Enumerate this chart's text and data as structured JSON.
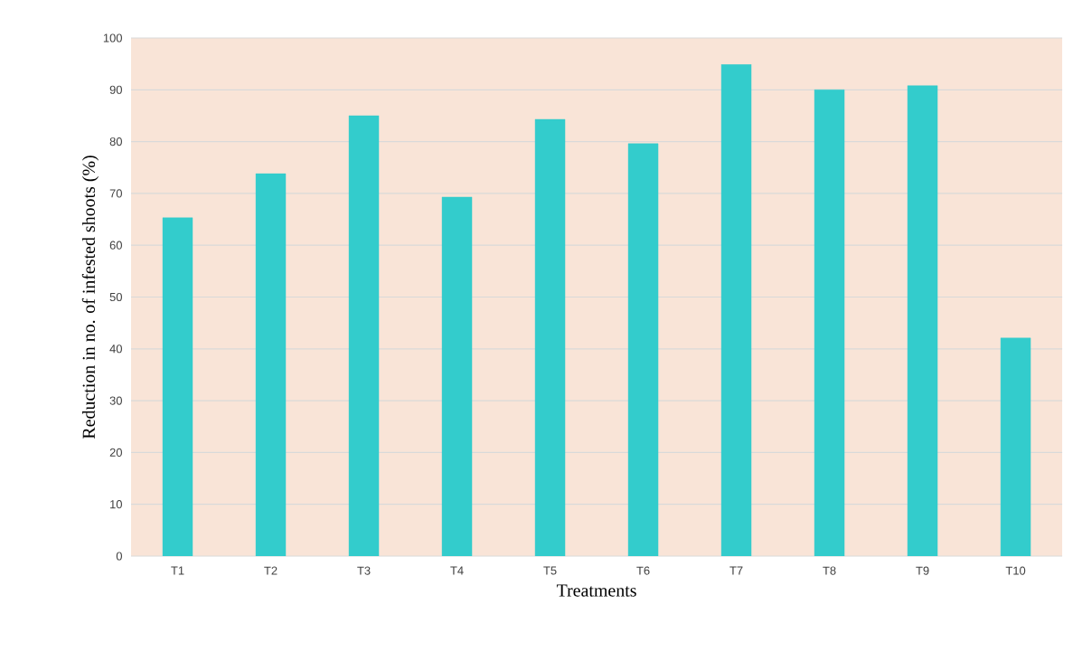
{
  "chart_data": {
    "type": "bar",
    "xlabel": "Treatments",
    "ylabel": "Reduction in no. of infested shoots (%)",
    "categories": [
      "T1",
      "T2",
      "T3",
      "T4",
      "T5",
      "T6",
      "T7",
      "T8",
      "T9",
      "T10"
    ],
    "values": [
      65.3,
      73.8,
      85.0,
      69.3,
      84.3,
      79.6,
      94.9,
      90.0,
      90.8,
      42.1
    ],
    "color": "#33cccc",
    "ylim": [
      0,
      100
    ],
    "yticks": [
      0,
      10,
      20,
      30,
      40,
      50,
      60,
      70,
      80,
      90,
      100
    ],
    "grid": "y"
  }
}
